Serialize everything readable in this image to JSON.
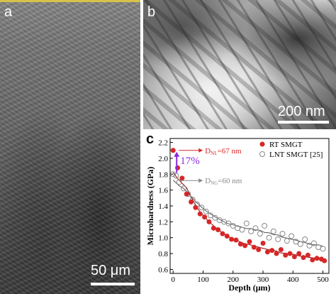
{
  "panel_a": {
    "label": "a",
    "scale_text": "50 μm"
  },
  "panel_b": {
    "label": "b",
    "scale_text": "200 nm"
  },
  "panel_c": {
    "label": "c"
  },
  "annotations": {
    "percent": "17%",
    "dnl": "D",
    "dnl_sub": "NL",
    "dnl_val": "=67 nm",
    "dng": "D",
    "dng_sub": "NG",
    "dng_val": "=60 nm"
  },
  "colors": {
    "rt": "#d62728",
    "lnt": "#888888",
    "arrow": "#8a2be2"
  },
  "chart_data": {
    "type": "scatter",
    "xlabel": "Depth (μm)",
    "ylabel": "Microhardness (GPa)",
    "xlim": [
      -10,
      520
    ],
    "ylim": [
      0.55,
      2.25
    ],
    "xticks": [
      0,
      100,
      200,
      300,
      400,
      500
    ],
    "yticks": [
      0.6,
      0.8,
      1.0,
      1.2,
      1.4,
      1.6,
      1.8,
      2.0,
      2.2
    ],
    "legend": "top-right",
    "series": [
      {
        "name": "RT SMGT",
        "marker": "filled-circle",
        "color": "#d62728",
        "x": [
          0,
          15,
          30,
          45,
          60,
          75,
          90,
          105,
          120,
          135,
          150,
          165,
          180,
          195,
          210,
          225,
          240,
          255,
          270,
          285,
          300,
          315,
          330,
          345,
          360,
          375,
          390,
          405,
          420,
          435,
          450,
          465,
          480,
          495,
          505
        ],
        "y": [
          2.1,
          1.88,
          1.75,
          1.55,
          1.45,
          1.38,
          1.3,
          1.26,
          1.2,
          1.12,
          1.1,
          1.05,
          1.02,
          0.98,
          0.97,
          0.92,
          0.9,
          0.95,
          0.88,
          0.85,
          0.93,
          0.82,
          0.84,
          0.8,
          0.85,
          0.78,
          0.8,
          0.76,
          0.8,
          0.75,
          0.78,
          0.72,
          0.74,
          0.73,
          0.71
        ]
      },
      {
        "name": "LNT SMGT [25]",
        "marker": "open-circle",
        "color": "#888888",
        "x": [
          0,
          10,
          20,
          35,
          50,
          65,
          80,
          95,
          110,
          125,
          140,
          155,
          170,
          185,
          200,
          215,
          230,
          245,
          260,
          275,
          290,
          305,
          320,
          335,
          350,
          365,
          380,
          395,
          410,
          425,
          440,
          455,
          470,
          485,
          500
        ],
        "y": [
          1.8,
          1.78,
          1.7,
          1.62,
          1.55,
          1.48,
          1.42,
          1.38,
          1.33,
          1.28,
          1.25,
          1.22,
          1.2,
          1.18,
          1.15,
          1.12,
          1.1,
          1.18,
          1.08,
          1.12,
          1.05,
          1.15,
          1.0,
          1.08,
          0.98,
          1.05,
          0.96,
          1.02,
          0.95,
          0.92,
          0.98,
          0.9,
          0.93,
          0.88,
          0.86
        ]
      }
    ]
  }
}
